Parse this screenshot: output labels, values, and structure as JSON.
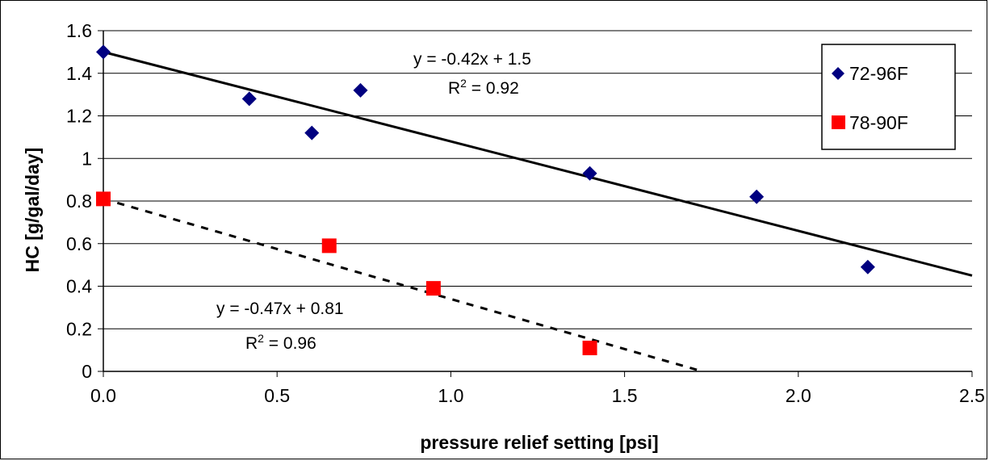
{
  "chart_data": {
    "type": "scatter",
    "title": "",
    "xlabel": "pressure relief setting [psi]",
    "ylabel": "HC [g/gal/day]",
    "xlim": [
      0,
      2.5
    ],
    "ylim": [
      0,
      1.6
    ],
    "x_ticks": [
      "0.0",
      "0.5",
      "1.0",
      "1.5",
      "2.0",
      "2.5"
    ],
    "y_ticks": [
      "0",
      "0.2",
      "0.4",
      "0.6",
      "0.8",
      "1",
      "1.2",
      "1.4",
      "1.6"
    ],
    "grid": "horizontal",
    "legend_position": "top-right",
    "series": [
      {
        "name": "72-96F",
        "marker": "diamond",
        "color": "#000080",
        "x": [
          0.0,
          0.42,
          0.6,
          0.74,
          1.4,
          1.88,
          2.2
        ],
        "y": [
          1.5,
          1.28,
          1.12,
          1.32,
          0.93,
          0.82,
          0.49
        ],
        "trendline": {
          "slope": -0.42,
          "intercept": 1.5,
          "style": "solid",
          "x_range": [
            0,
            2.5
          ],
          "equation": "y = -0.42x + 1.5",
          "r2_prefix": "R",
          "r2_exp": "2",
          "r2_value": " = 0.92"
        }
      },
      {
        "name": "78-90F",
        "marker": "square",
        "color": "#ff0000",
        "x": [
          0.0,
          0.65,
          0.95,
          1.4
        ],
        "y": [
          0.81,
          0.59,
          0.39,
          0.11
        ],
        "trendline": {
          "slope": -0.47,
          "intercept": 0.81,
          "style": "dashed",
          "x_range": [
            0,
            1.72
          ],
          "equation": "y = -0.47x + 0.81",
          "r2_prefix": "R",
          "r2_exp": "2",
          "r2_value": " = 0.96"
        }
      }
    ]
  }
}
